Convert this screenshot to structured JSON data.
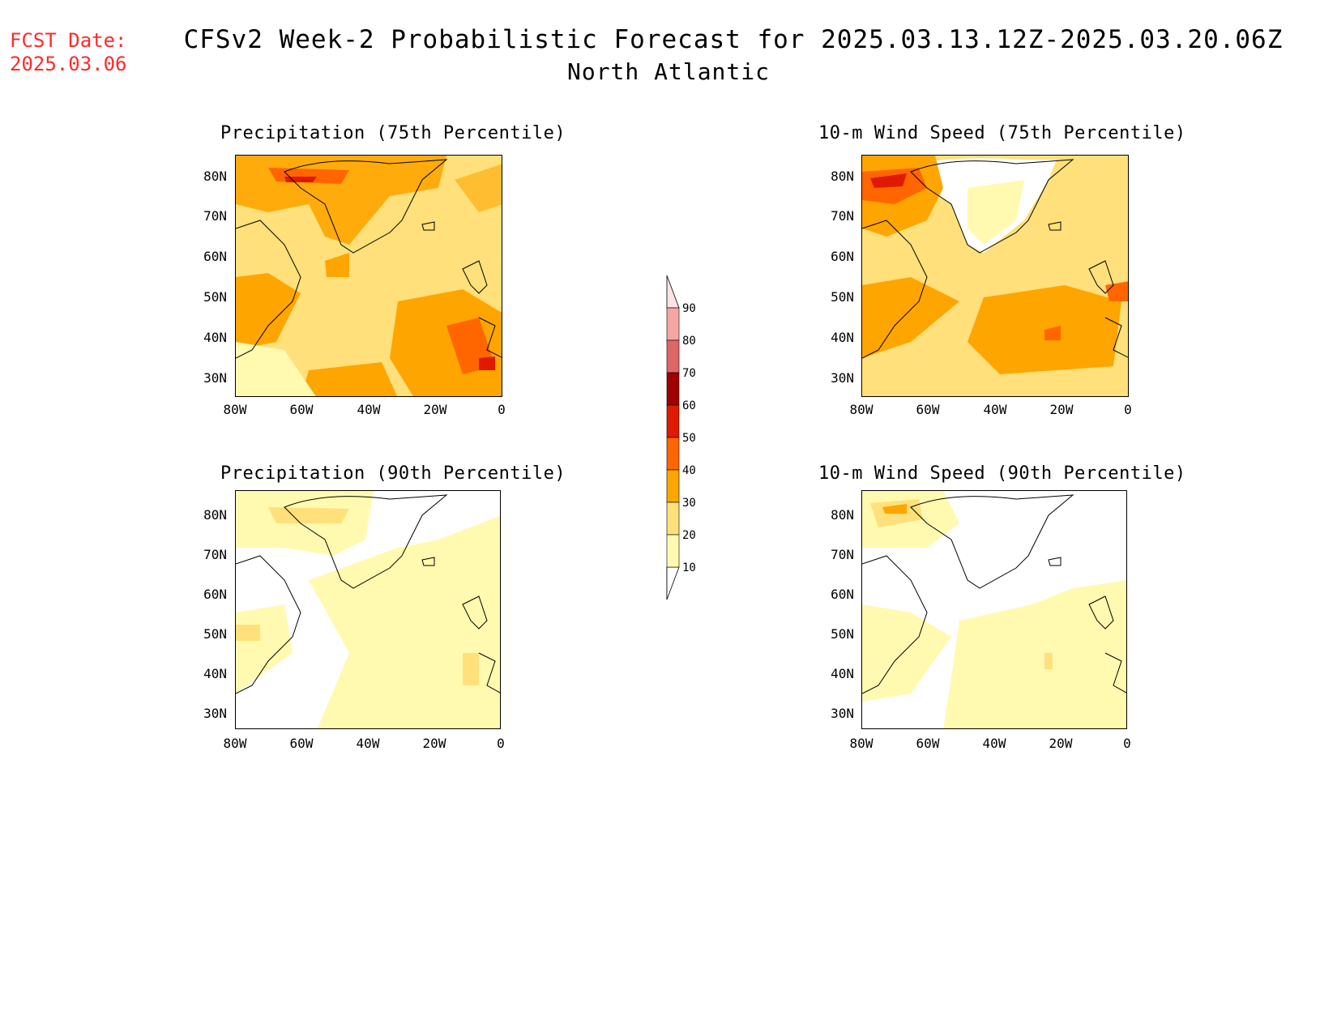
{
  "header": {
    "fcst_label": "FCST Date:",
    "fcst_date": "2025.03.06",
    "title": "CFSv2 Week-2 Probabilistic Forecast for 2025.03.13.12Z-2025.03.20.06Z",
    "subtitle": "North Atlantic"
  },
  "axes": {
    "lat_labels": [
      "80N",
      "70N",
      "60N",
      "50N",
      "40N",
      "30N"
    ],
    "lon_labels": [
      "80W",
      "60W",
      "40W",
      "20W",
      "0"
    ]
  },
  "panels": [
    {
      "title": "Precipitation (75th Percentile)"
    },
    {
      "title": "10-m Wind Speed (75th Percentile)"
    },
    {
      "title": "Precipitation (90th Percentile)"
    },
    {
      "title": "10-m Wind Speed (90th Percentile)"
    }
  ],
  "colorbar": {
    "labels": [
      "90",
      "80",
      "70",
      "60",
      "50",
      "40",
      "30",
      "20",
      "10"
    ],
    "colors": [
      "#f6a5a5",
      "#e06666",
      "#a00000",
      "#e01a00",
      "#ff6600",
      "#ffa500",
      "#ffe07a",
      "#fffab0"
    ]
  }
}
